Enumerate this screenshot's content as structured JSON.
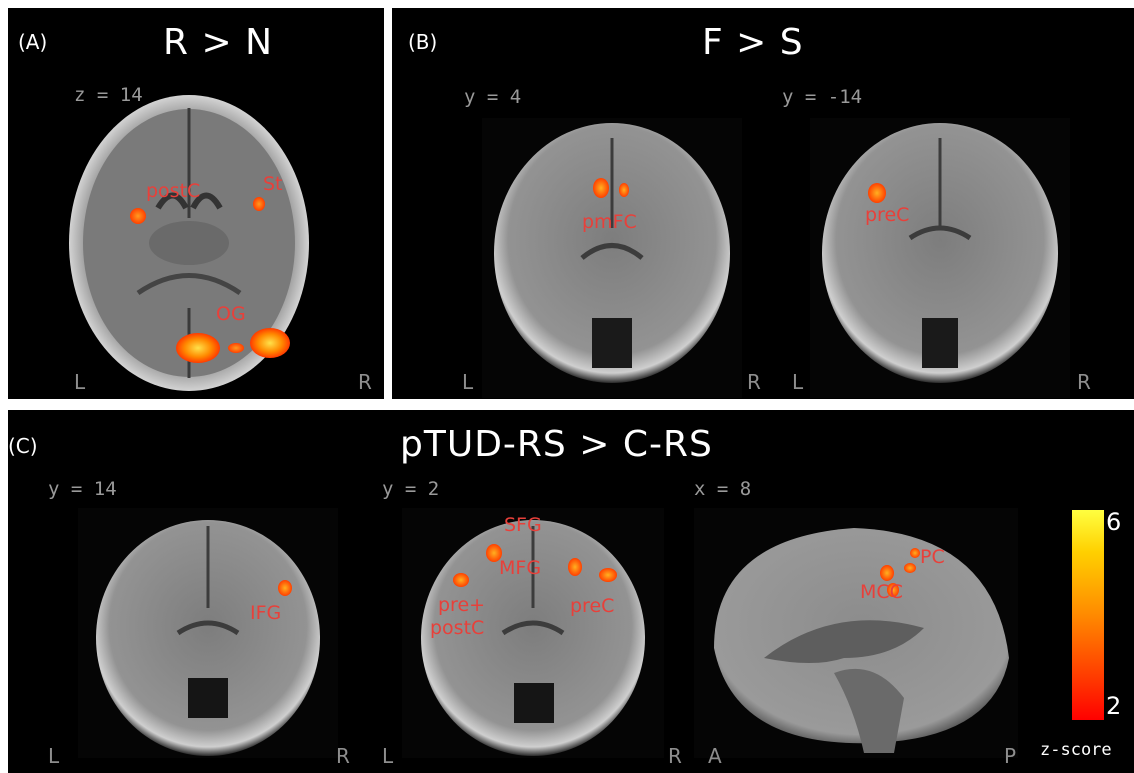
{
  "panel_a": {
    "label": "(A)",
    "title": "R > N",
    "coord": "z = 14",
    "left": "L",
    "right": "R",
    "regions": [
      "postC",
      "St",
      "OG"
    ]
  },
  "panel_b": {
    "label": "(B)",
    "title": "F > S",
    "slice1": {
      "coord": "y = 4",
      "left": "L",
      "right": "R",
      "regions": [
        "pmFC"
      ]
    },
    "slice2": {
      "coord": "y = -14",
      "left": "L",
      "right": "R",
      "regions": [
        "preC"
      ]
    }
  },
  "panel_c": {
    "label": "(C)",
    "title": "pTUD-RS > C-RS",
    "slice1": {
      "coord": "y = 14",
      "left": "L",
      "right": "R",
      "regions": [
        "IFG"
      ]
    },
    "slice2": {
      "coord": "y = 2",
      "left": "L",
      "right": "R",
      "regions": [
        "SFG",
        "MFG",
        "pre+",
        "postC",
        "preC"
      ]
    },
    "slice3": {
      "coord": "x = 8",
      "left": "A",
      "right": "P",
      "regions": [
        "PC",
        "MCC"
      ]
    }
  },
  "colorbar": {
    "max": "6",
    "min": "2",
    "unit": "z-score",
    "colors": [
      "#ffff40",
      "#ff8a00",
      "#ff0000"
    ]
  }
}
